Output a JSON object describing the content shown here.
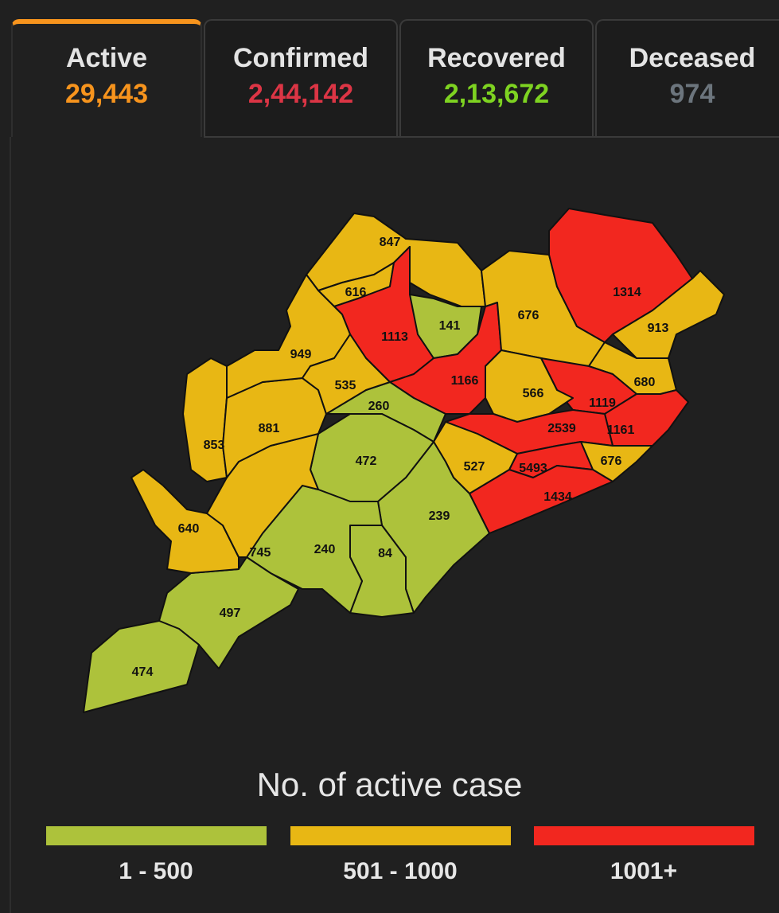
{
  "tabs": [
    {
      "label": "Active",
      "value": "29,443",
      "color": "#f7941d",
      "active": true
    },
    {
      "label": "Confirmed",
      "value": "2,44,142",
      "color": "#dc3545"
    },
    {
      "label": "Recovered",
      "value": "2,13,672",
      "color": "#7ed321"
    },
    {
      "label": "Deceased",
      "value": "974",
      "color": "#6c757d"
    }
  ],
  "colors": {
    "low": "#adc23b",
    "mid": "#e8b714",
    "high": "#f2271f",
    "border": "#111111"
  },
  "map": {
    "districts": [
      {
        "value": "847",
        "level": "mid"
      },
      {
        "value": "616",
        "level": "mid"
      },
      {
        "value": "1113",
        "level": "high"
      },
      {
        "value": "141",
        "level": "low"
      },
      {
        "value": "1166",
        "level": "high"
      },
      {
        "value": "676",
        "level": "mid"
      },
      {
        "value": "1314",
        "level": "high"
      },
      {
        "value": "913",
        "level": "mid"
      },
      {
        "value": "680",
        "level": "mid"
      },
      {
        "value": "1119",
        "level": "high"
      },
      {
        "value": "566",
        "level": "mid"
      },
      {
        "value": "1161",
        "level": "high"
      },
      {
        "value": "2539",
        "level": "high"
      },
      {
        "value": "676",
        "level": "mid"
      },
      {
        "value": "5493",
        "level": "high"
      },
      {
        "value": "1434",
        "level": "high"
      },
      {
        "value": "527",
        "level": "mid"
      },
      {
        "value": "239",
        "level": "low"
      },
      {
        "value": "260",
        "level": "low"
      },
      {
        "value": "472",
        "level": "low"
      },
      {
        "value": "84",
        "level": "low"
      },
      {
        "value": "240",
        "level": "low"
      },
      {
        "value": "497",
        "level": "low"
      },
      {
        "value": "474",
        "level": "low"
      },
      {
        "value": "640",
        "level": "mid"
      },
      {
        "value": "745",
        "level": "mid"
      },
      {
        "value": "853",
        "level": "mid"
      },
      {
        "value": "881",
        "level": "mid"
      },
      {
        "value": "949",
        "level": "mid"
      },
      {
        "value": "535",
        "level": "mid"
      }
    ]
  },
  "legend": {
    "title": "No. of active case",
    "items": [
      {
        "label": "1 - 500",
        "level": "low"
      },
      {
        "label": "501 - 1000",
        "level": "mid"
      },
      {
        "label": "1001+",
        "level": "high"
      }
    ]
  }
}
